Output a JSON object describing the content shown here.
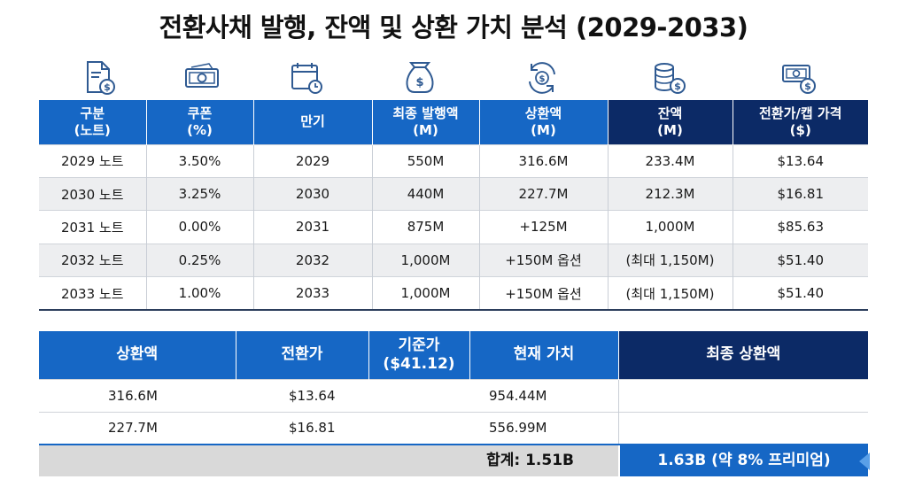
{
  "title": "전환사채 발행, 잔액 및 상환 가치 분석 (2029-2033)",
  "icons": [
    "document-dollar-icon",
    "banknote-icon",
    "calendar-clock-icon",
    "money-bag-icon",
    "refresh-dollar-icon",
    "coin-stack-icon",
    "cash-dollar-icon"
  ],
  "colors": {
    "header_blue": "#1667c5",
    "header_navy": "#0c2a66",
    "row_alt": "#edeef0",
    "total_gray": "#d9d9d9"
  },
  "main_table": {
    "headers": [
      "구분\n(노트)",
      "쿠폰\n(%)",
      "만기",
      "최종 발행액\n(M)",
      "상환액\n(M)",
      "잔액\n(M)",
      "전환가/캡 가격\n($)"
    ],
    "rows": [
      [
        "2029 노트",
        "3.50%",
        "2029",
        "550M",
        "316.6M",
        "233.4M",
        "$13.64"
      ],
      [
        "2030 노트",
        "3.25%",
        "2030",
        "440M",
        "227.7M",
        "212.3M",
        "$16.81"
      ],
      [
        "2031 노트",
        "0.00%",
        "2031",
        "875M",
        "+125M",
        "1,000M",
        "$85.63"
      ],
      [
        "2032 노트",
        "0.25%",
        "2032",
        "1,000M",
        "+150M 옵션",
        "(최대 1,150M)",
        "$51.40"
      ],
      [
        "2033 노트",
        "1.00%",
        "2033",
        "1,000M",
        "+150M 옵션",
        "(최대 1,150M)",
        "$51.40"
      ]
    ]
  },
  "value_table": {
    "headers": [
      "상환액",
      "전환가",
      "기준가\n($41.12)",
      "현재 가치",
      "최종 상환액"
    ],
    "rows": [
      [
        "316.6M",
        "$13.64",
        "954.44M"
      ],
      [
        "227.7M",
        "$16.81",
        "556.99M"
      ]
    ],
    "total_label": "합계: 1.51B",
    "final_value": "1.63B (약 8% 프리미엄)"
  }
}
